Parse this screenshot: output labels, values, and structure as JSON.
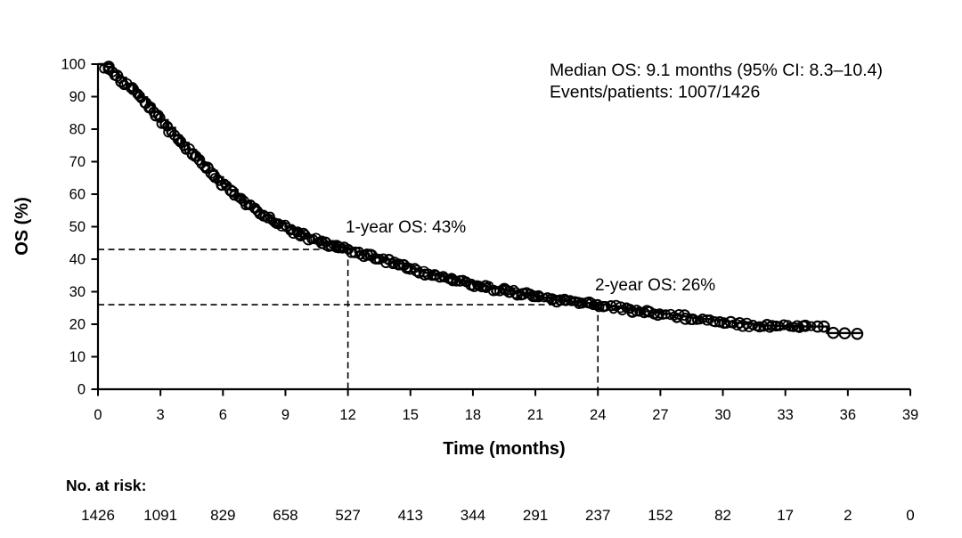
{
  "figure": {
    "background": "#ffffff",
    "ink_color": "#000000"
  },
  "chart_data": {
    "type": "line",
    "subtype": "kaplan_meier_survival",
    "title": "",
    "xlabel": "Time (months)",
    "ylabel": "OS (%)",
    "xlim": [
      0,
      39
    ],
    "ylim": [
      0,
      100
    ],
    "x_ticks": [
      0,
      3,
      6,
      9,
      12,
      15,
      18,
      21,
      24,
      27,
      30,
      33,
      36,
      39
    ],
    "y_ticks": [
      0,
      10,
      20,
      30,
      40,
      50,
      60,
      70,
      80,
      90,
      100
    ],
    "grid": false,
    "legend": "none",
    "annotations": {
      "median_line1": "Median OS: 9.1 months (95% CI: 8.3–10.4)",
      "median_line2": "Events/patients: 1007/1426",
      "one_year": {
        "label": "1-year OS: 43%",
        "time_months": 12,
        "os_pct": 43
      },
      "two_year": {
        "label": "2-year OS: 26%",
        "time_months": 24,
        "os_pct": 26
      }
    },
    "series": [
      {
        "name": "Overall survival",
        "marker": "open-circle-censor-marks",
        "color": "#000000",
        "points": [
          [
            0,
            100
          ],
          [
            0.35,
            99.2
          ],
          [
            0.7,
            97.6
          ],
          [
            1,
            95.8
          ],
          [
            1.35,
            93.8
          ],
          [
            1.7,
            91.8
          ],
          [
            2,
            89.8
          ],
          [
            2.35,
            87.6
          ],
          [
            2.7,
            85.3
          ],
          [
            3,
            82.8
          ],
          [
            3.35,
            80.4
          ],
          [
            3.7,
            78
          ],
          [
            4,
            75.8
          ],
          [
            4.35,
            73.6
          ],
          [
            4.7,
            71.4
          ],
          [
            5,
            69.3
          ],
          [
            5.35,
            67.2
          ],
          [
            5.7,
            65.2
          ],
          [
            6,
            63.2
          ],
          [
            6.35,
            61.3
          ],
          [
            6.7,
            59.5
          ],
          [
            7,
            57.8
          ],
          [
            7.35,
            56.2
          ],
          [
            7.7,
            54.8
          ],
          [
            8,
            53.4
          ],
          [
            8.35,
            52.2
          ],
          [
            8.7,
            51
          ],
          [
            9,
            50
          ],
          [
            9.35,
            48.9
          ],
          [
            9.7,
            47.9
          ],
          [
            10,
            47
          ],
          [
            10.35,
            46.1
          ],
          [
            10.7,
            45.3
          ],
          [
            11,
            44.6
          ],
          [
            11.35,
            44
          ],
          [
            11.7,
            43.5
          ],
          [
            12,
            43
          ],
          [
            12.35,
            42.3
          ],
          [
            12.7,
            41.7
          ],
          [
            13,
            41.1
          ],
          [
            13.35,
            40.5
          ],
          [
            13.7,
            39.9
          ],
          [
            14,
            39.3
          ],
          [
            14.35,
            38.6
          ],
          [
            14.7,
            37.8
          ],
          [
            15,
            37.1
          ],
          [
            15.35,
            36.4
          ],
          [
            15.7,
            35.8
          ],
          [
            16,
            35.2
          ],
          [
            16.35,
            34.7
          ],
          [
            16.7,
            34.2
          ],
          [
            17,
            33.8
          ],
          [
            17.35,
            33.3
          ],
          [
            17.7,
            32.8
          ],
          [
            18,
            32.3
          ],
          [
            18.35,
            31.8
          ],
          [
            18.7,
            31.4
          ],
          [
            19,
            31
          ],
          [
            19.35,
            30.6
          ],
          [
            19.7,
            30.2
          ],
          [
            20,
            29.8
          ],
          [
            20.35,
            29.4
          ],
          [
            20.7,
            29
          ],
          [
            21,
            28.6
          ],
          [
            21.35,
            28.2
          ],
          [
            21.7,
            27.8
          ],
          [
            22,
            27.5
          ],
          [
            22.35,
            27.2
          ],
          [
            22.7,
            26.9
          ],
          [
            23,
            26.7
          ],
          [
            23.35,
            26.5
          ],
          [
            23.7,
            26.2
          ],
          [
            24,
            26
          ],
          [
            24.5,
            25.5
          ],
          [
            25,
            25
          ],
          [
            25.5,
            24.5
          ],
          [
            26,
            24
          ],
          [
            26.5,
            23.6
          ],
          [
            27,
            23.2
          ],
          [
            27.5,
            22.8
          ],
          [
            28,
            22.4
          ],
          [
            28.5,
            22
          ],
          [
            29,
            21.6
          ],
          [
            29.5,
            21.2
          ],
          [
            30,
            20.8
          ],
          [
            30.5,
            20.4
          ],
          [
            31,
            20.1
          ],
          [
            31.5,
            19.8
          ],
          [
            32,
            19.6
          ],
          [
            32.5,
            19.5
          ],
          [
            33,
            19.4
          ],
          [
            33.5,
            19.35
          ],
          [
            34,
            19.3
          ],
          [
            34.9,
            19.3
          ],
          [
            35,
            17.3
          ],
          [
            36.6,
            17
          ]
        ]
      }
    ],
    "censor_tail": [
      [
        34.55,
        19.3
      ],
      [
        34.85,
        19.3
      ],
      [
        35.3,
        17.35
      ],
      [
        35.85,
        17.2
      ],
      [
        36.45,
        17.05
      ]
    ]
  },
  "risk_table": {
    "label": "No. at risk:",
    "times": [
      0,
      3,
      6,
      9,
      12,
      15,
      18,
      21,
      24,
      27,
      30,
      33,
      36,
      39
    ],
    "values": [
      1426,
      1091,
      829,
      658,
      527,
      413,
      344,
      291,
      237,
      152,
      82,
      17,
      2,
      0
    ]
  }
}
